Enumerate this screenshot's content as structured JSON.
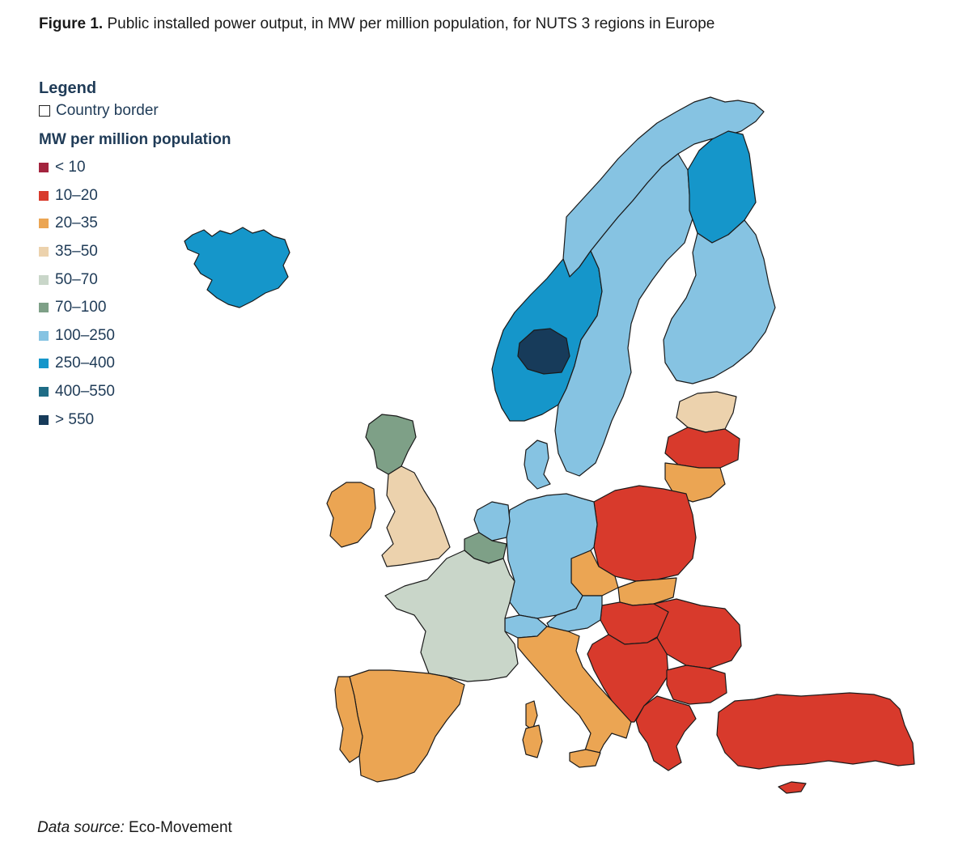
{
  "figure": {
    "label": "Figure 1.",
    "title": "Public installed power output, in MW per million population, for NUTS 3 regions in Europe"
  },
  "legend": {
    "heading": "Legend",
    "border_label": "Country border",
    "scale_heading": "MW per million population",
    "classes": [
      {
        "label": "< 10",
        "color": "#a3243e"
      },
      {
        "label": "10–20",
        "color": "#d83a2c"
      },
      {
        "label": "20–35",
        "color": "#eba553"
      },
      {
        "label": "35–50",
        "color": "#ecd2ad"
      },
      {
        "label": "50–70",
        "color": "#c9d6c9"
      },
      {
        "label": "70–100",
        "color": "#7ea087"
      },
      {
        "label": "100–250",
        "color": "#86c3e2"
      },
      {
        "label": "250–400",
        "color": "#1596ca"
      },
      {
        "label": "400–550",
        "color": "#1f6c86"
      },
      {
        "label": "> 550",
        "color": "#173b5a"
      }
    ]
  },
  "source": {
    "label": "Data source:",
    "value": "Eco-Movement"
  },
  "map_regions": [
    {
      "name": "iceland",
      "class": "250–400"
    },
    {
      "name": "norway-north",
      "class": "100–250"
    },
    {
      "name": "norway-south",
      "class": "250–400"
    },
    {
      "name": "norway-inland",
      "class": "> 550"
    },
    {
      "name": "sweden",
      "class": "100–250"
    },
    {
      "name": "finland-north",
      "class": "250–400"
    },
    {
      "name": "finland-south",
      "class": "100–250"
    },
    {
      "name": "estonia",
      "class": "35–50"
    },
    {
      "name": "latvia",
      "class": "10–20"
    },
    {
      "name": "lithuania",
      "class": "20–35"
    },
    {
      "name": "poland",
      "class": "10–20"
    },
    {
      "name": "czechia",
      "class": "20–35"
    },
    {
      "name": "slovakia",
      "class": "20–35"
    },
    {
      "name": "hungary",
      "class": "10–20"
    },
    {
      "name": "romania",
      "class": "10–20"
    },
    {
      "name": "balkans",
      "class": "10–20"
    },
    {
      "name": "bulgaria",
      "class": "10–20"
    },
    {
      "name": "greece",
      "class": "10–20"
    },
    {
      "name": "turkey",
      "class": "10–20"
    },
    {
      "name": "cyprus",
      "class": "10–20"
    },
    {
      "name": "germany",
      "class": "100–250"
    },
    {
      "name": "denmark",
      "class": "100–250"
    },
    {
      "name": "netherlands",
      "class": "100–250"
    },
    {
      "name": "belgium",
      "class": "70–100"
    },
    {
      "name": "austria",
      "class": "100–250"
    },
    {
      "name": "switzerland",
      "class": "100–250"
    },
    {
      "name": "france",
      "class": "50–70"
    },
    {
      "name": "italy",
      "class": "20–35"
    },
    {
      "name": "spain",
      "class": "20–35"
    },
    {
      "name": "portugal",
      "class": "20–35"
    },
    {
      "name": "ireland",
      "class": "20–35"
    },
    {
      "name": "united-kingdom",
      "class": "35–50"
    },
    {
      "name": "scotland",
      "class": "70–100"
    }
  ]
}
